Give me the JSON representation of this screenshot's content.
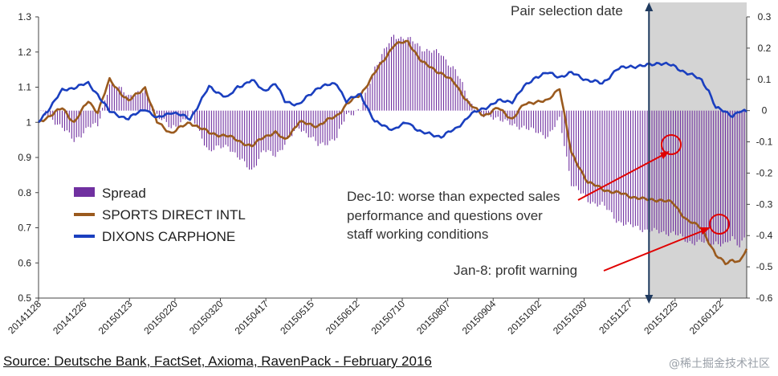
{
  "chart_data": {
    "type": "line",
    "title": "",
    "left_axis": {
      "range": [
        0.5,
        1.3
      ],
      "ticks": [
        "0.5",
        "0.6",
        "0.7",
        "0.8",
        "0.9",
        "1",
        "1.1",
        "1.2",
        "1.3"
      ],
      "tick_values": [
        0.5,
        0.6,
        0.7,
        0.8,
        0.9,
        1.0,
        1.1,
        1.2,
        1.3
      ]
    },
    "right_axis": {
      "range": [
        -0.6,
        0.3
      ],
      "ticks": [
        "-0.6",
        "-0.5",
        "-0.4",
        "-0.3",
        "-0.2",
        "-0.1",
        "0",
        "0.1",
        "0.2",
        "0.3"
      ],
      "tick_values": [
        -0.6,
        -0.5,
        -0.4,
        -0.3,
        -0.2,
        -0.1,
        0,
        0.1,
        0.2,
        0.3
      ]
    },
    "x_ticks": [
      "20141128",
      "20141226",
      "20150123",
      "20150220",
      "20150320",
      "20150417",
      "20150515",
      "20150612",
      "20150710",
      "20150807",
      "20150904",
      "20151002",
      "20151030",
      "20151127",
      "20151225",
      "20160122"
    ],
    "n_points": 300,
    "shade_start_fraction": 0.862,
    "series": [
      {
        "name": "SPORTS DIRECT INTL",
        "axis": "left",
        "color": "#9a5a1e",
        "key_index": [
          0,
          10,
          15,
          21,
          25,
          30,
          38,
          45,
          50,
          56,
          64,
          72,
          80,
          84,
          90,
          95,
          100,
          104,
          110,
          118,
          126,
          130,
          136,
          142,
          150,
          156,
          162,
          170,
          176,
          182,
          188,
          194,
          200,
          205,
          210,
          215,
          220,
          225,
          232,
          238,
          244,
          250,
          256,
          262,
          268,
          274,
          280,
          283,
          286,
          290,
          293,
          296,
          299
        ],
        "key_values": [
          1.0,
          1.04,
          1.0,
          1.06,
          1.03,
          1.12,
          1.06,
          1.1,
          1.0,
          0.97,
          1.0,
          0.97,
          0.96,
          0.95,
          0.93,
          0.96,
          0.97,
          0.95,
          1.0,
          0.99,
          1.02,
          1.05,
          1.08,
          1.14,
          1.22,
          1.23,
          1.17,
          1.14,
          1.11,
          1.05,
          1.02,
          1.04,
          1.01,
          1.05,
          1.06,
          1.06,
          1.1,
          0.91,
          0.83,
          0.81,
          0.8,
          0.79,
          0.78,
          0.78,
          0.77,
          0.72,
          0.7,
          0.66,
          0.62,
          0.6,
          0.61,
          0.6,
          0.64
        ]
      },
      {
        "name": "DIXONS CARPHONE",
        "axis": "left",
        "color": "#1a3fbf",
        "key_index": [
          0,
          10,
          15,
          21,
          25,
          30,
          38,
          45,
          50,
          56,
          64,
          72,
          80,
          84,
          90,
          95,
          100,
          104,
          110,
          118,
          126,
          130,
          136,
          142,
          150,
          156,
          162,
          170,
          176,
          182,
          188,
          194,
          200,
          205,
          210,
          215,
          220,
          225,
          232,
          238,
          244,
          250,
          256,
          262,
          268,
          274,
          280,
          283,
          286,
          290,
          293,
          296,
          299
        ],
        "key_values": [
          1.0,
          1.09,
          1.1,
          1.11,
          1.08,
          1.03,
          1.01,
          1.04,
          1.01,
          1.03,
          1.01,
          1.1,
          1.07,
          1.1,
          1.12,
          1.09,
          1.11,
          1.06,
          1.05,
          1.1,
          1.11,
          1.06,
          1.08,
          1.0,
          0.98,
          1.0,
          0.97,
          0.96,
          0.98,
          1.02,
          1.04,
          1.06,
          1.06,
          1.1,
          1.13,
          1.14,
          1.13,
          1.14,
          1.12,
          1.11,
          1.15,
          1.16,
          1.16,
          1.17,
          1.16,
          1.14,
          1.12,
          1.09,
          1.04,
          1.03,
          1.02,
          1.03,
          1.03
        ]
      },
      {
        "name": "Spread",
        "axis": "right",
        "color": "#7030a0",
        "type": "bar",
        "key_index": [
          0,
          10,
          15,
          21,
          25,
          30,
          38,
          45,
          50,
          56,
          64,
          72,
          80,
          84,
          90,
          95,
          100,
          104,
          110,
          118,
          126,
          130,
          136,
          142,
          150,
          156,
          162,
          170,
          176,
          182,
          188,
          194,
          200,
          205,
          210,
          215,
          220,
          225,
          232,
          238,
          244,
          250,
          256,
          262,
          268,
          274,
          280,
          283,
          286,
          290,
          293,
          296,
          299
        ],
        "key_values": [
          0.0,
          -0.05,
          -0.1,
          -0.05,
          -0.05,
          0.09,
          0.05,
          0.06,
          -0.01,
          -0.06,
          -0.01,
          -0.13,
          -0.11,
          -0.15,
          -0.19,
          -0.13,
          -0.14,
          -0.11,
          -0.05,
          -0.11,
          -0.09,
          -0.01,
          0.0,
          0.14,
          0.24,
          0.23,
          0.2,
          0.18,
          0.13,
          0.03,
          -0.02,
          -0.02,
          -0.05,
          -0.05,
          -0.07,
          -0.08,
          -0.03,
          -0.23,
          -0.29,
          -0.3,
          -0.35,
          -0.37,
          -0.38,
          -0.39,
          -0.39,
          -0.42,
          -0.42,
          -0.43,
          -0.42,
          -0.43,
          -0.41,
          -0.43,
          -0.39
        ]
      }
    ],
    "legend": {
      "position": "left-middle",
      "items": [
        "Spread",
        "SPORTS DIRECT INTL",
        "DIXONS CARPHONE"
      ]
    },
    "annotations": {
      "pair_selection": "Pair selection date",
      "dec10_lines": [
        "Dec-10: worse than expected sales",
        "performance and questions over",
        "staff working conditions"
      ],
      "jan8": "Jan-8: profit warning"
    }
  },
  "source": "Source: Deutsche Bank, FactSet, Axioma, RavenPack - February 2016",
  "watermark": "@稀土掘金技术社区"
}
